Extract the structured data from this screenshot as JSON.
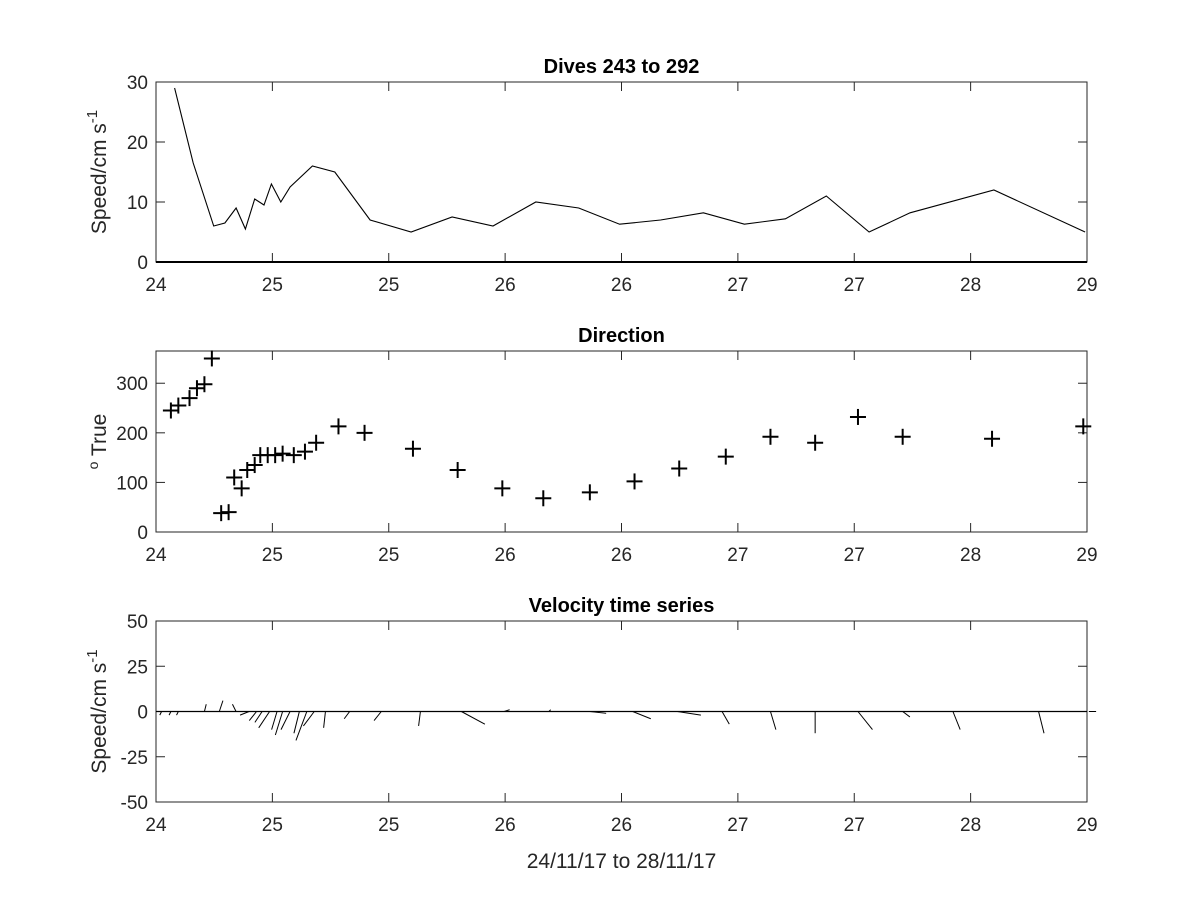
{
  "chart_data": [
    {
      "type": "line",
      "title": "Dives 243 to 292",
      "ylabel": "Speed/cm s",
      "ylabel_superscript": "-1",
      "xlim": [
        24,
        29
      ],
      "ylim": [
        0,
        30
      ],
      "x_tick_labels": [
        "24",
        "25",
        "25",
        "26",
        "26",
        "27",
        "27",
        "28",
        "29"
      ],
      "y_ticks": [
        0,
        10,
        20,
        30
      ],
      "series": [
        {
          "x": [
            24.1,
            24.2,
            24.31,
            24.37,
            24.43,
            24.48,
            24.53,
            24.58,
            24.62,
            24.67,
            24.72,
            24.84,
            24.96,
            25.15,
            25.37,
            25.59,
            25.81,
            26.04,
            26.27,
            26.49,
            26.71,
            26.94,
            27.16,
            27.38,
            27.6,
            27.83,
            28.05,
            28.5,
            28.99
          ],
          "y": [
            29,
            16.5,
            6,
            6.5,
            9,
            5.5,
            10.5,
            9.5,
            13,
            10,
            12.5,
            16,
            15,
            7,
            5,
            7.5,
            6,
            10,
            9,
            6.3,
            7,
            8.2,
            6.3,
            7.2,
            11,
            5,
            8.2,
            12,
            5
          ]
        }
      ]
    },
    {
      "type": "scatter",
      "title": "Direction",
      "ylabel": "True",
      "ylabel_superscript": "o",
      "xlim": [
        24,
        29
      ],
      "ylim": [
        0,
        365
      ],
      "x_tick_labels": [
        "24",
        "25",
        "25",
        "26",
        "26",
        "27",
        "27",
        "28",
        "29"
      ],
      "y_ticks": [
        0,
        100,
        200,
        300
      ],
      "series": [
        {
          "x": [
            24.08,
            24.12,
            24.18,
            24.22,
            24.26,
            24.3,
            24.35,
            24.39,
            24.42,
            24.46,
            24.49,
            24.53,
            24.56,
            24.6,
            24.64,
            24.68,
            24.74,
            24.8,
            24.86,
            24.98,
            25.12,
            25.38,
            25.62,
            25.86,
            26.08,
            26.33,
            26.57,
            26.81,
            27.06,
            27.3,
            27.54,
            27.77,
            28.01,
            28.49,
            28.98
          ],
          "y": [
            245,
            255,
            270,
            290,
            298,
            350,
            38,
            40,
            110,
            88,
            125,
            135,
            155,
            155,
            155,
            158,
            155,
            162,
            180,
            213,
            200,
            168,
            125,
            88,
            68,
            80,
            102,
            128,
            152,
            192,
            180,
            232,
            192,
            188,
            213
          ]
        }
      ]
    },
    {
      "type": "line",
      "title": "Velocity time series",
      "xlabel": "24/11/17 to 28/11/17",
      "ylabel": "Speed/cm s",
      "ylabel_superscript": "-1",
      "xlim": [
        24,
        29
      ],
      "ylim": [
        -50,
        50
      ],
      "x_tick_labels": [
        "24",
        "25",
        "25",
        "26",
        "26",
        "27",
        "27",
        "28",
        "29"
      ],
      "y_ticks": [
        -50,
        -25,
        0,
        25,
        50
      ],
      "series": [
        {
          "x": [
            24.03,
            24.08,
            24.12,
            24.26,
            24.34,
            24.43,
            24.5,
            24.54,
            24.57,
            24.61,
            24.65,
            24.68,
            24.72,
            24.77,
            24.81,
            24.85,
            24.91,
            25.04,
            25.21,
            25.42,
            25.64,
            25.87,
            26.11,
            26.33,
            26.56,
            26.8,
            27.04,
            27.3,
            27.54,
            27.77,
            28.01,
            28.28,
            28.74,
            29.01
          ],
          "u": [
            -1,
            -1,
            -1,
            1,
            2,
            -2,
            -5,
            -4,
            -4,
            -6,
            -3,
            -4,
            -5,
            -3,
            -6,
            -6,
            -1,
            -3,
            -4,
            -1,
            13,
            3,
            1,
            9,
            10,
            13,
            4,
            3,
            0,
            8,
            4,
            4,
            3,
            4
          ],
          "v": [
            -2,
            -2,
            -2,
            4,
            6,
            4,
            -2,
            -5,
            -6,
            -9,
            -10,
            -13,
            -10,
            -12,
            -16,
            -8,
            -9,
            -4,
            -5,
            -8,
            -7,
            1,
            1,
            -1,
            -4,
            -2,
            -7,
            -10,
            -12,
            -10,
            -3,
            -10,
            -12,
            0
          ]
        }
      ]
    }
  ]
}
